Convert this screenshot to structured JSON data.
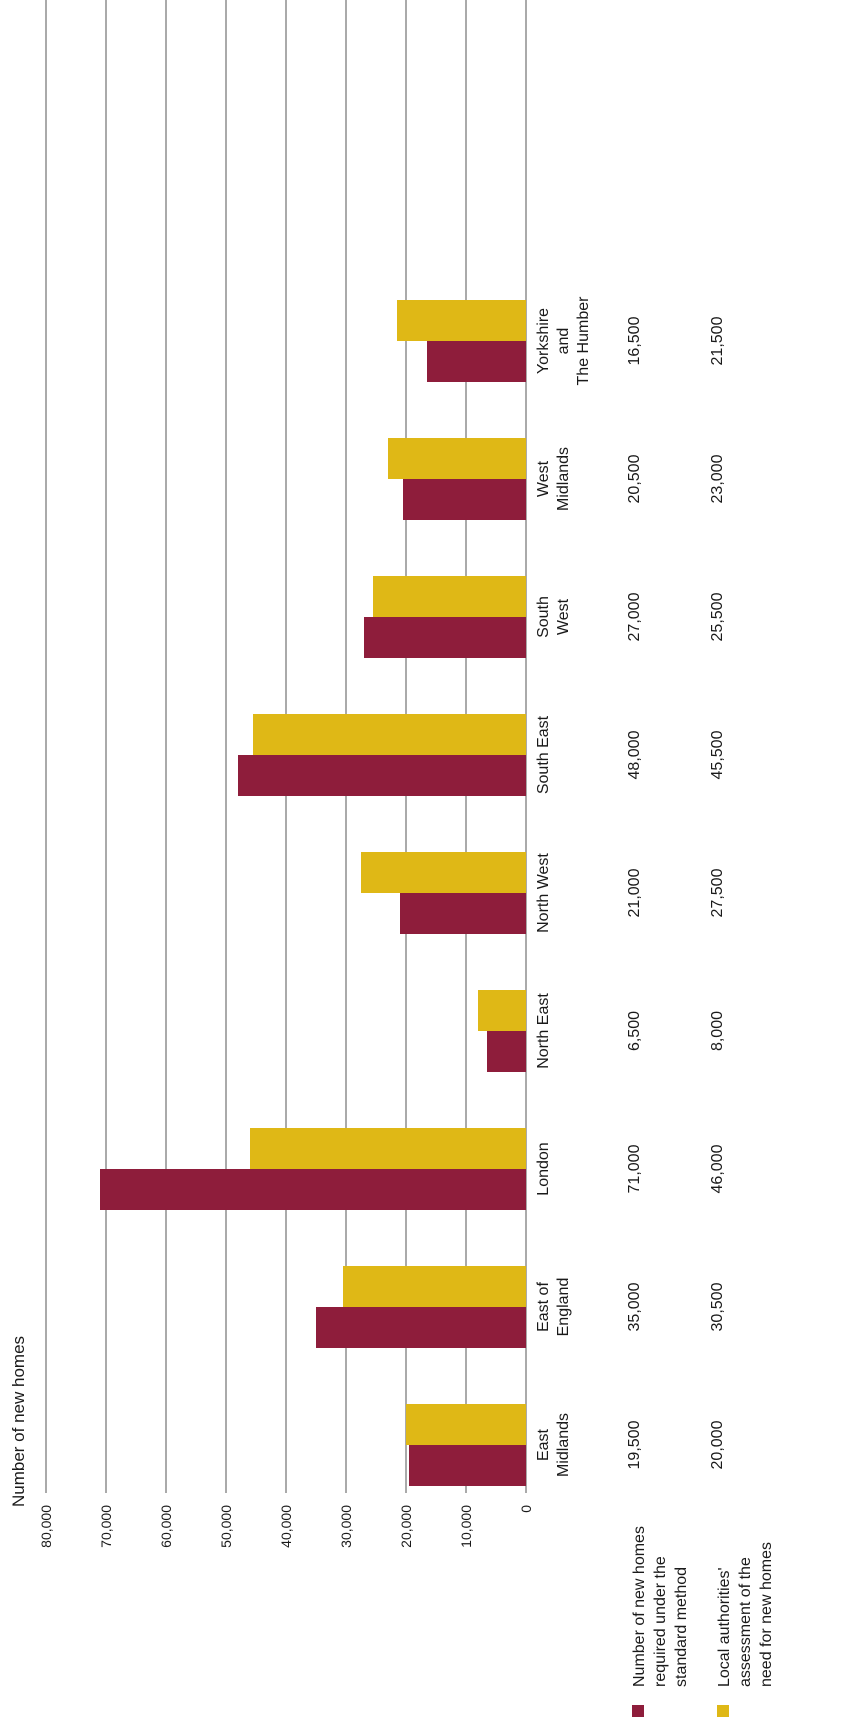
{
  "chart_data": {
    "type": "bar",
    "orientation": "vertical (figure printed rotated 90° counter-clockwise)",
    "ylabel": "Number of new homes",
    "xlabel": "",
    "ylim": [
      0,
      80000
    ],
    "yticks": [
      0,
      10000,
      20000,
      30000,
      40000,
      50000,
      60000,
      70000,
      80000
    ],
    "ytick_labels": [
      "0",
      "10,000",
      "20,000",
      "30,000",
      "40,000",
      "50,000",
      "60,000",
      "70,000",
      "80,000"
    ],
    "grid": true,
    "legend_position": "left",
    "categories": [
      "East Midlands",
      "East of England",
      "London",
      "North East",
      "North West",
      "South East",
      "South West",
      "West Midlands",
      "Yorkshire and The Humber"
    ],
    "category_label_lines": [
      [
        "East",
        "Midlands"
      ],
      [
        "East of",
        "England"
      ],
      [
        "London"
      ],
      [
        "North East"
      ],
      [
        "North West"
      ],
      [
        "South East"
      ],
      [
        "South",
        "West"
      ],
      [
        "West",
        "Midlands"
      ],
      [
        "Yorkshire",
        "and",
        "The Humber"
      ]
    ],
    "series": [
      {
        "name": "Number of new homes required under the standard method",
        "legend_lines": [
          "Number of new homes",
          "required under the",
          "standard method"
        ],
        "color": "#8e1d3b",
        "values": [
          19500,
          35000,
          71000,
          6500,
          21000,
          48000,
          27000,
          20500,
          16500
        ],
        "labels": [
          "19,500",
          "35,000",
          "71,000",
          "6,500",
          "21,000",
          "48,000",
          "27,000",
          "20,500",
          "16,500"
        ]
      },
      {
        "name": "Local authorities' assessment of the need for new homes",
        "legend_lines": [
          "Local authorities'",
          "assessment of the",
          "need for new homes"
        ],
        "color": "#dfb816",
        "values": [
          20000,
          30500,
          46000,
          8000,
          27500,
          45500,
          25500,
          23000,
          21500
        ],
        "labels": [
          "20,000",
          "30,500",
          "46,000",
          "8,000",
          "27,500",
          "45,500",
          "25,500",
          "23,000",
          "21,500"
        ]
      }
    ]
  }
}
